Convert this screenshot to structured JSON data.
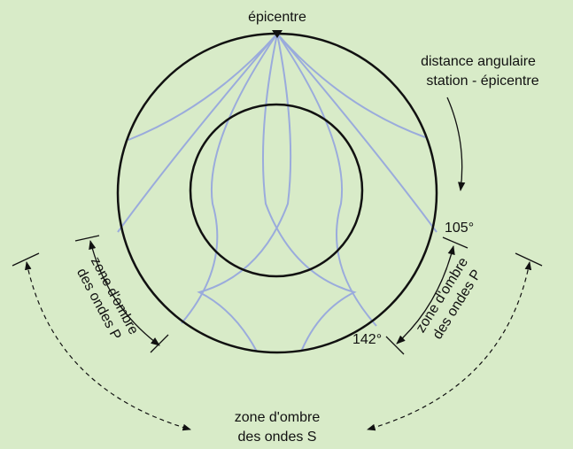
{
  "labels": {
    "epicentre": "épicentre",
    "distance_line1": "distance angulaire",
    "distance_line2": "station - épicentre",
    "angle_105": "105°",
    "angle_142": "142°",
    "p_zone_left_line1": "zone d'ombre",
    "p_zone_left_line2": "des ondes P",
    "p_zone_right_line1": "zone d'ombre",
    "p_zone_right_line2": "des ondes P",
    "s_zone_line1": "zone d'ombre",
    "s_zone_line2": "des ondes S"
  }
}
